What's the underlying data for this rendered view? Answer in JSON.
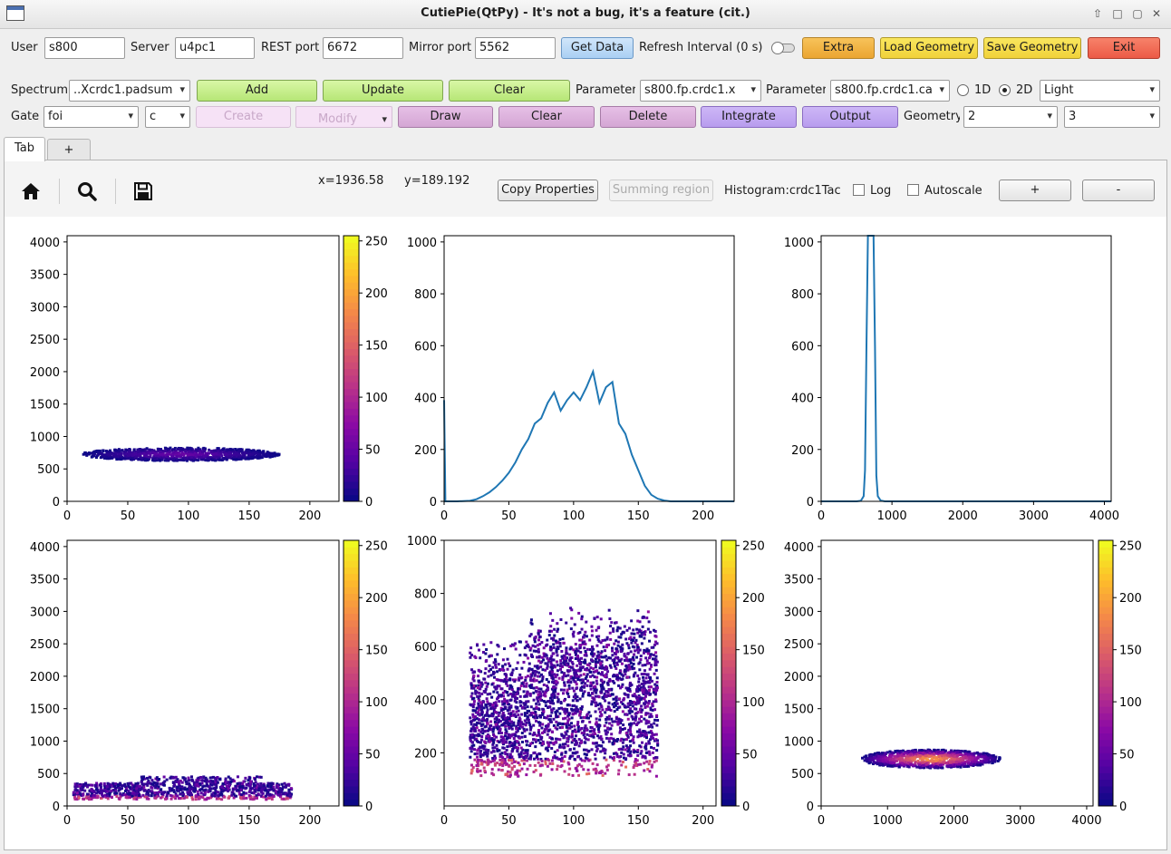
{
  "window": {
    "title": "CutiePie(QtPy) - It's not a bug, it's a feature (cit.)",
    "buttons": [
      "⇧",
      "□",
      "▢",
      "✕"
    ]
  },
  "conn": {
    "user_label": "User",
    "user": "s800",
    "server_label": "Server",
    "server": "u4pc1",
    "rest_label": "REST port",
    "rest": "6672",
    "mirror_label": "Mirror port",
    "mirror": "5562",
    "get_data": "Get Data",
    "refresh_label": "Refresh Interval (0 s)",
    "extra": "Extra",
    "load_geo": "Load Geometry",
    "save_geo": "Save Geometry",
    "exit": "Exit"
  },
  "spectrum": {
    "label": "Spectrum",
    "value": "..Xcrdc1.padsum",
    "add": "Add",
    "update": "Update",
    "clear": "Clear",
    "param1_label": "Parameter",
    "param1": "s800.fp.crdc1.x",
    "param2_label": "Parameter",
    "param2": "s800.fp.crdc1.ca",
    "r1d": "1D",
    "r2d": "2D",
    "theme": "Light"
  },
  "gate": {
    "label": "Gate",
    "value": "foi",
    "type": "c",
    "create": "Create",
    "modify": "Modify",
    "draw": "Draw",
    "clear": "Clear",
    "delete": "Delete",
    "integrate": "Integrate",
    "output": "Output",
    "geometry_label": "Geometry",
    "rows": "2",
    "cols": "3"
  },
  "tabs": [
    {
      "label": "Tab"
    },
    {
      "label": "+"
    }
  ],
  "plottoolbar": {
    "x_readout": "x=1936.58",
    "y_readout": "y=189.192",
    "copy": "Copy Properties",
    "summing": "Summing region",
    "histogram": "Histogram:crdc1Tac",
    "log": "Log",
    "autoscale": "Autoscale",
    "plus": "+",
    "minus": "-"
  },
  "icons": {
    "home": "home-icon",
    "zoom": "zoom-icon",
    "save": "save-icon"
  },
  "chart_data": [
    {
      "type": "heatmap",
      "x_ticks": [
        0,
        50,
        100,
        150,
        200
      ],
      "y_ticks": [
        0,
        500,
        1000,
        1500,
        2000,
        2500,
        3000,
        3500,
        4000
      ],
      "xlim": [
        0,
        224
      ],
      "ylim": [
        0,
        4096
      ],
      "colorbar_ticks": [
        0,
        50,
        100,
        150,
        200,
        250
      ],
      "colormap": "plasma",
      "blobs": [
        {
          "x": [
            12,
            175
          ],
          "y": [
            600,
            850
          ],
          "intensity": 0.15
        }
      ]
    },
    {
      "type": "line",
      "x_ticks": [
        0,
        50,
        100,
        150,
        200
      ],
      "y_ticks": [
        0,
        200,
        400,
        600,
        800,
        1000
      ],
      "xlim": [
        0,
        224
      ],
      "ylim": [
        0,
        1024
      ],
      "color": "#1f77b4",
      "x": [
        0,
        1,
        2,
        10,
        20,
        25,
        30,
        35,
        40,
        45,
        50,
        55,
        60,
        65,
        70,
        75,
        80,
        85,
        90,
        95,
        100,
        105,
        110,
        115,
        120,
        125,
        130,
        135,
        140,
        145,
        150,
        155,
        160,
        165,
        170,
        175,
        180,
        224
      ],
      "y": [
        390,
        0,
        0,
        0,
        2,
        8,
        20,
        35,
        55,
        80,
        110,
        150,
        200,
        240,
        300,
        320,
        380,
        420,
        350,
        390,
        420,
        390,
        440,
        500,
        380,
        440,
        460,
        300,
        260,
        180,
        120,
        60,
        25,
        10,
        3,
        0,
        0,
        0
      ]
    },
    {
      "type": "line",
      "x_ticks": [
        0,
        1000,
        2000,
        3000,
        4000
      ],
      "y_ticks": [
        0,
        200,
        400,
        600,
        800,
        1000
      ],
      "xlim": [
        0,
        4096
      ],
      "ylim": [
        0,
        1024
      ],
      "color": "#1f77b4",
      "x": [
        0,
        500,
        560,
        600,
        620,
        640,
        660,
        700,
        740,
        760,
        780,
        800,
        840,
        900,
        4096
      ],
      "y": [
        0,
        0,
        2,
        20,
        120,
        600,
        1024,
        1024,
        1024,
        600,
        100,
        20,
        3,
        0,
        0
      ]
    },
    {
      "type": "heatmap",
      "x_ticks": [
        0,
        50,
        100,
        150,
        200
      ],
      "y_ticks": [
        0,
        500,
        1000,
        1500,
        2000,
        2500,
        3000,
        3500,
        4000
      ],
      "xlim": [
        0,
        224
      ],
      "ylim": [
        0,
        4096
      ],
      "colorbar_ticks": [
        0,
        50,
        100,
        150,
        200,
        250
      ],
      "colormap": "plasma",
      "blobs": [
        {
          "x": [
            5,
            185
          ],
          "y": [
            100,
            600
          ],
          "intensity": 0.2
        }
      ]
    },
    {
      "type": "heatmap",
      "x_ticks": [
        0,
        50,
        100,
        150,
        200
      ],
      "y_ticks": [
        200,
        400,
        600,
        800,
        1000
      ],
      "xlim": [
        0,
        210
      ],
      "ylim": [
        0,
        1000
      ],
      "colorbar_ticks": [
        0,
        50,
        100,
        150,
        200,
        250
      ],
      "colormap": "plasma",
      "blobs": [
        {
          "x": [
            20,
            165
          ],
          "y": [
            110,
            760
          ],
          "intensity": 0.25
        }
      ]
    },
    {
      "type": "heatmap",
      "x_ticks": [
        0,
        1000,
        2000,
        3000,
        4000
      ],
      "y_ticks": [
        0,
        500,
        1000,
        1500,
        2000,
        2500,
        3000,
        3500,
        4000
      ],
      "xlim": [
        0,
        4096
      ],
      "ylim": [
        0,
        4096
      ],
      "colorbar_ticks": [
        0,
        50,
        100,
        150,
        200,
        250
      ],
      "colormap": "plasma",
      "blobs": [
        {
          "x": [
            600,
            2700
          ],
          "y": [
            550,
            900
          ],
          "intensity": 0.6
        }
      ]
    }
  ]
}
